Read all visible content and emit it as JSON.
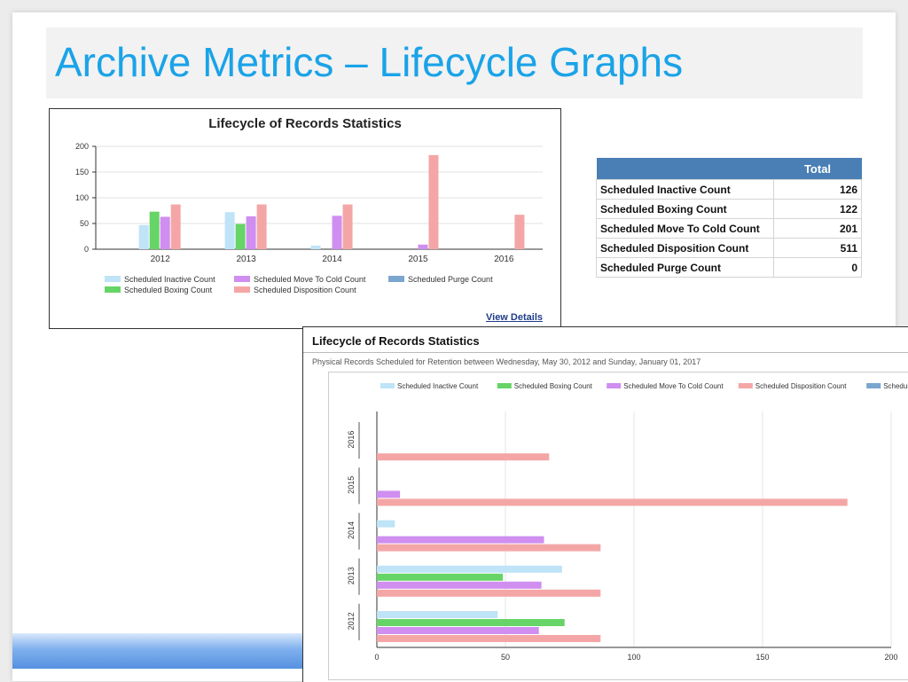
{
  "slide": {
    "title": "Archive Metrics – Lifecycle Graphs"
  },
  "chart_data": [
    {
      "type": "bar",
      "title": "Lifecycle of Records Statistics",
      "categories": [
        "2012",
        "2013",
        "2014",
        "2015",
        "2016"
      ],
      "series": [
        {
          "name": "Scheduled Inactive Count",
          "values": [
            47,
            72,
            7,
            0,
            0
          ],
          "color": "#bfe3f7"
        },
        {
          "name": "Scheduled Boxing Count",
          "values": [
            73,
            49,
            0,
            0,
            0
          ],
          "color": "#66d466"
        },
        {
          "name": "Scheduled Move To Cold Count",
          "values": [
            63,
            64,
            65,
            9,
            0
          ],
          "color": "#cf8ef0"
        },
        {
          "name": "Scheduled Disposition Count",
          "values": [
            87,
            87,
            87,
            183,
            67
          ],
          "color": "#f4a6a6"
        },
        {
          "name": "Scheduled Purge Count",
          "values": [
            0,
            0,
            0,
            0,
            0
          ],
          "color": "#7aa6cf"
        }
      ],
      "ylim": [
        0,
        200
      ],
      "yticks": [
        "200",
        "150",
        "100",
        "50",
        "0"
      ],
      "legend_position": "bottom",
      "grid": true,
      "link": "View Details"
    },
    {
      "type": "bar",
      "orientation": "horizontal",
      "title": "Lifecycle of Records Statistics",
      "subtitle": "Physical Records Scheduled for Retention between Wednesday, May 30, 2012 and Sunday, January 01, 2017",
      "categories": [
        "2012",
        "2013",
        "2014",
        "2015",
        "2016"
      ],
      "series": [
        {
          "name": "Scheduled Inactive Count",
          "values": [
            47,
            72,
            7,
            0,
            0
          ],
          "color": "#bfe3f7"
        },
        {
          "name": "Scheduled Boxing Count",
          "values": [
            73,
            49,
            0,
            0,
            0
          ],
          "color": "#66d466"
        },
        {
          "name": "Scheduled Move To Cold Count",
          "values": [
            63,
            64,
            65,
            9,
            0
          ],
          "color": "#cf8ef0"
        },
        {
          "name": "Scheduled Disposition Count",
          "values": [
            87,
            87,
            87,
            183,
            67
          ],
          "color": "#f4a6a6"
        },
        {
          "name": "Scheduled Purge Count",
          "values": [
            0,
            0,
            0,
            0,
            0
          ],
          "color": "#7aa6cf"
        }
      ],
      "xlim": [
        0,
        200
      ],
      "xticks": [
        "0",
        "50",
        "100",
        "150",
        "200"
      ],
      "legend_position": "top",
      "grid": true
    }
  ],
  "totals_table": {
    "header": "Total",
    "rows": [
      {
        "label": "Scheduled Inactive Count",
        "value": "126"
      },
      {
        "label": "Scheduled Boxing Count",
        "value": "122"
      },
      {
        "label": "Scheduled Move To Cold Count",
        "value": "201"
      },
      {
        "label": "Scheduled Disposition Count",
        "value": "511"
      },
      {
        "label": "Scheduled Purge Count",
        "value": "0"
      }
    ]
  }
}
